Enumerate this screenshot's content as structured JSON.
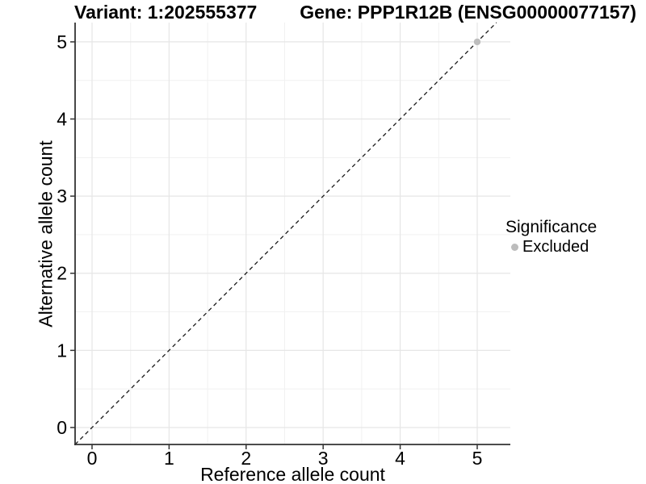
{
  "header": {
    "variant_title": "Variant: 1:202555377",
    "gene_title": "Gene: PPP1R12B (ENSG00000077157)"
  },
  "chart_data": {
    "type": "scatter",
    "title_left": "Variant: 1:202555377",
    "title_right": "Gene: PPP1R12B (ENSG00000077157)",
    "xlabel": "Reference allele count",
    "ylabel": "Alternative allele count",
    "xlim": [
      -0.22,
      5.43
    ],
    "ylim": [
      -0.22,
      5.25
    ],
    "xticks": [
      0,
      1,
      2,
      3,
      4,
      5
    ],
    "yticks": [
      0,
      1,
      2,
      3,
      4,
      5
    ],
    "minor_step": 0.5,
    "grid": "on",
    "identity_line": {
      "slope": 1,
      "intercept": 0,
      "style": "dashed",
      "color": "#1a1a1a"
    },
    "series": [
      {
        "name": "Excluded",
        "color": "#bdbdbd",
        "points": [
          {
            "x": 5,
            "y": 5
          }
        ]
      }
    ],
    "legend": {
      "title": "Significance",
      "position": "right",
      "entries": [
        {
          "label": "Excluded",
          "color": "#bdbdbd"
        }
      ]
    }
  },
  "colors": {
    "background": "#ffffff",
    "grid_major": "#e6e6e6",
    "grid_minor": "#f1f1f1",
    "axis_line": "#333333",
    "tick_mark": "#333333",
    "tick_label": "#000000",
    "point": "#bdbdbd"
  }
}
